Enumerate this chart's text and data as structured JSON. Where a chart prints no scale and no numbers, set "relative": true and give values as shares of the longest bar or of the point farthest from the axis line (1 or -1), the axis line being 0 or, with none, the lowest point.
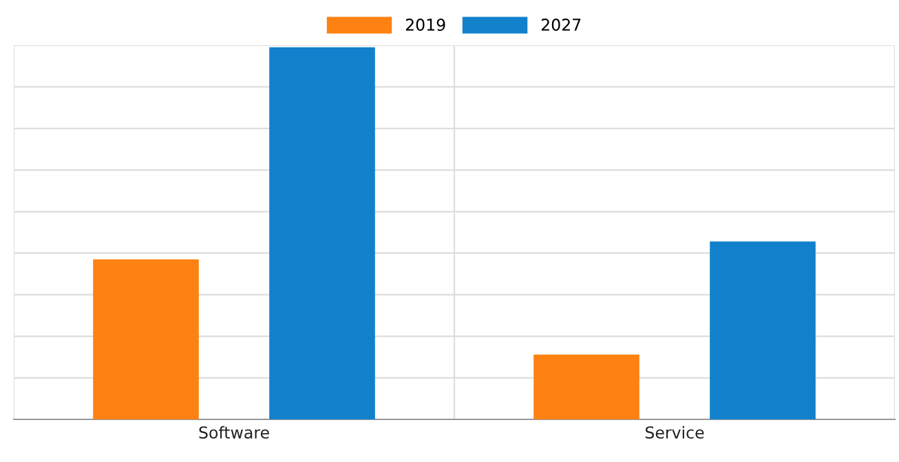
{
  "chart_data": {
    "type": "bar",
    "relative": true,
    "categories": [
      "Software",
      "Service"
    ],
    "series": [
      {
        "name": "2019",
        "color": "#fd8213",
        "values": [
          0.43,
          0.174
        ]
      },
      {
        "name": "2027",
        "color": "#1181cc",
        "values": [
          1,
          0.478
        ]
      }
    ],
    "grid": true,
    "legend": "top",
    "tick_labels": "x"
  }
}
